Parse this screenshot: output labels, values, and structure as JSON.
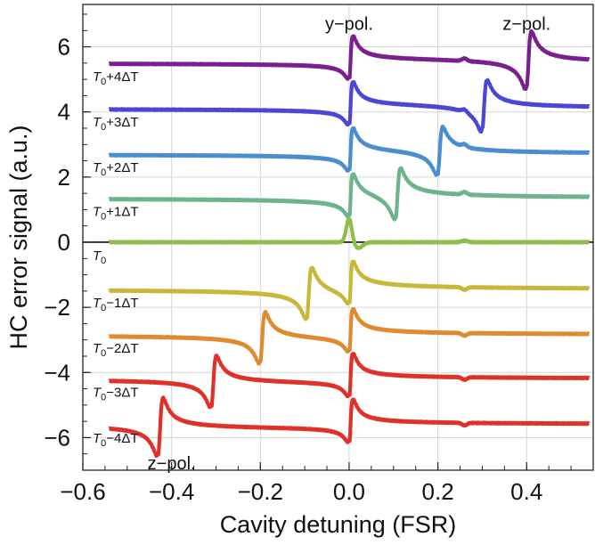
{
  "chart_data": {
    "type": "line",
    "xlabel": "Cavity detuning (FSR)",
    "ylabel": "HC error signal (a.u.)",
    "xlim": [
      -0.6,
      0.55
    ],
    "ylim": [
      -7,
      7.3
    ],
    "xticks": [
      -0.6,
      -0.4,
      -0.2,
      0.0,
      0.2,
      0.4
    ],
    "xtick_labels": [
      "−0.6",
      "−0.4",
      "−0.2",
      "0.0",
      "0.2",
      "0.4"
    ],
    "yticks": [
      -6,
      -4,
      -2,
      0,
      2,
      4,
      6
    ],
    "ytick_labels": [
      "−6",
      "−4",
      "−2",
      "0",
      "2",
      "4",
      "6"
    ],
    "grid": true,
    "zero_line": true,
    "annotations": [
      {
        "text": "y−pol.",
        "x": 0.0,
        "y": 6.8
      },
      {
        "text": "z−pol.",
        "x": 0.4,
        "y": 6.8
      },
      {
        "text": "z−pol.",
        "x": -0.4,
        "y": -6.7
      }
    ],
    "series": [
      {
        "name": "T0+4ΔT",
        "offset": 5.5,
        "peak_pos": 0.4,
        "peak_amp": 0.95,
        "color": "#7a1f8e",
        "label_sub": "0",
        "label_suffix": "+4ΔT"
      },
      {
        "name": "T0+3ΔT",
        "offset": 4.1,
        "peak_pos": 0.3,
        "peak_amp": 0.85,
        "color": "#4a46d6",
        "label_sub": "0",
        "label_suffix": "+3ΔT"
      },
      {
        "name": "T0+2ΔT",
        "offset": 2.7,
        "peak_pos": 0.2,
        "peak_amp": 0.8,
        "color": "#4a8ed0",
        "label_sub": "0",
        "label_suffix": "+2ΔT"
      },
      {
        "name": "T0+1ΔT",
        "offset": 1.35,
        "peak_pos": 0.105,
        "peak_amp": 0.85,
        "color": "#6db38c",
        "label_sub": "0",
        "label_suffix": "+1ΔT"
      },
      {
        "name": "T0",
        "offset": 0.0,
        "peak_pos": null,
        "peak_amp": 0,
        "color": "#8fbf4a",
        "label_sub": "0",
        "label_suffix": ""
      },
      {
        "name": "T0−1ΔT",
        "offset": -1.45,
        "peak_pos": -0.095,
        "peak_amp": 0.85,
        "color": "#c8b83a",
        "label_sub": "0",
        "label_suffix": "−1ΔT"
      },
      {
        "name": "T0−2ΔT",
        "offset": -2.85,
        "peak_pos": -0.2,
        "peak_amp": 0.85,
        "color": "#e08a30",
        "label_sub": "0",
        "label_suffix": "−2ΔT"
      },
      {
        "name": "T0−3ΔT",
        "offset": -4.2,
        "peak_pos": -0.31,
        "peak_amp": 0.85,
        "color": "#e0302a",
        "label_sub": "0",
        "label_suffix": "−3ΔT"
      },
      {
        "name": "T0−4ΔT",
        "offset": -5.6,
        "peak_pos": -0.43,
        "peak_amp": 0.95,
        "color": "#e0302a",
        "label_sub": "0",
        "label_suffix": "−4ΔT"
      }
    ],
    "common_feature": {
      "y_pol_pos": 0.0,
      "y_pol_amp": 0.75,
      "small_bump_pos": 0.26,
      "x_range": [
        -0.54,
        0.54
      ]
    }
  }
}
